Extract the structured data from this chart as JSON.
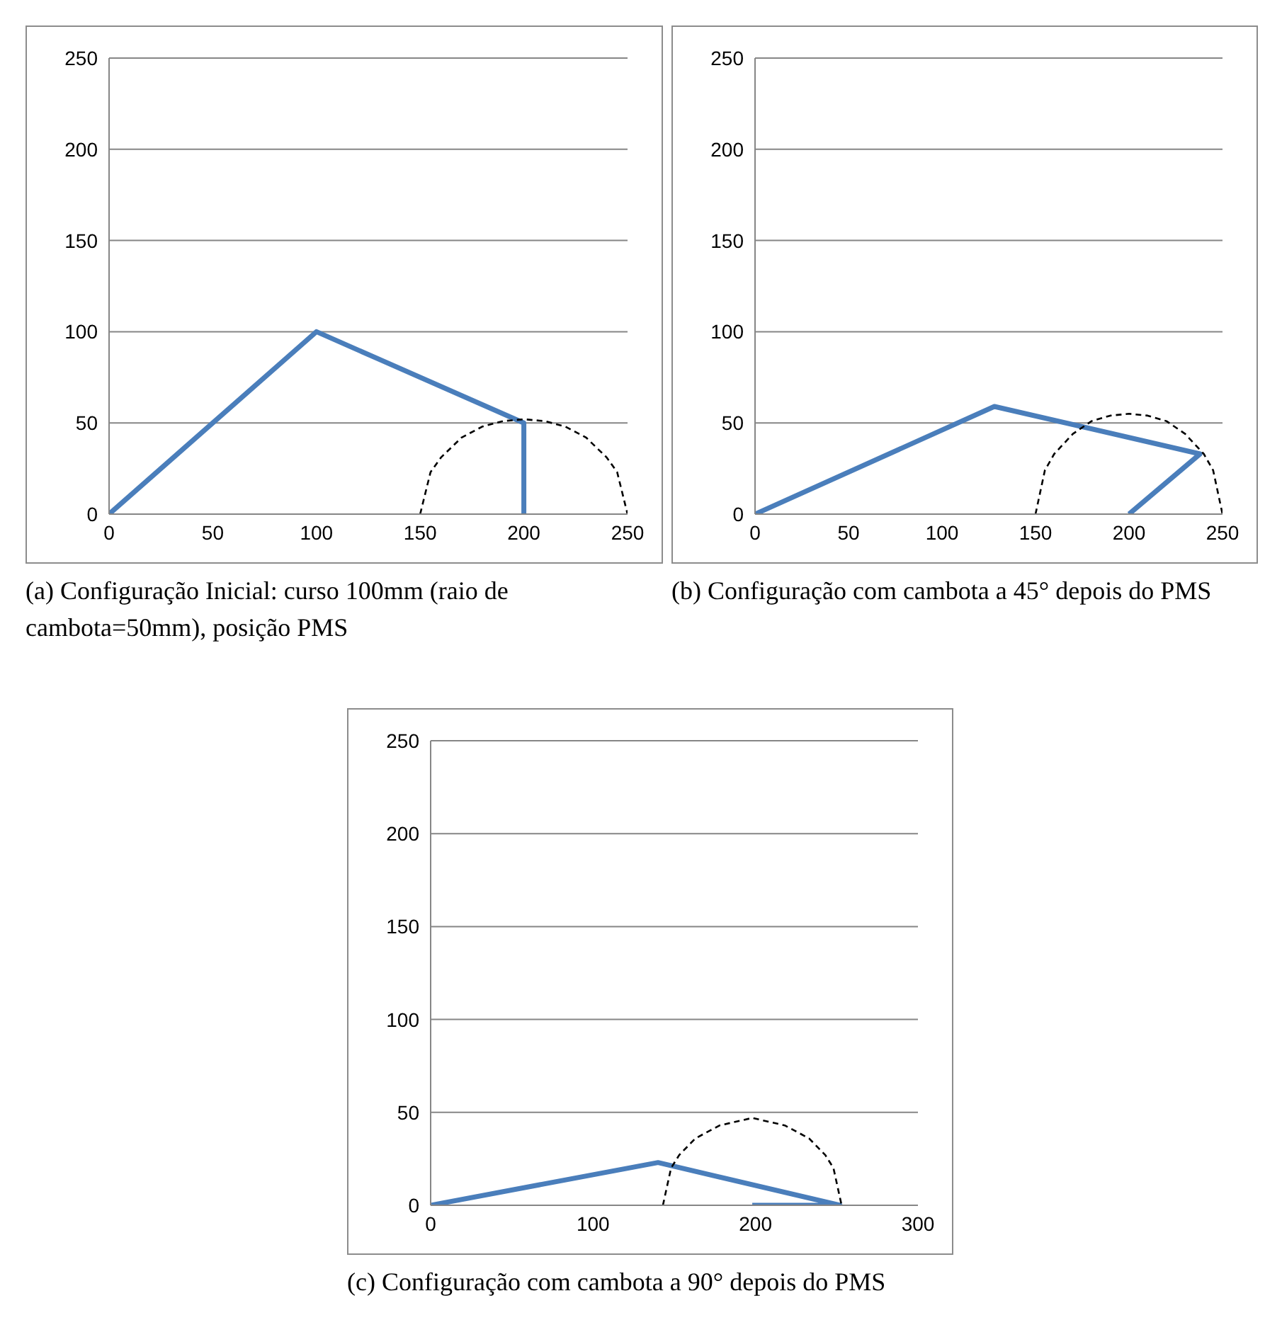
{
  "chart_data": [
    {
      "type": "line",
      "xlim": [
        0,
        250
      ],
      "xticks": [
        0,
        50,
        100,
        150,
        200,
        250
      ],
      "ylim": [
        0,
        250
      ],
      "yticks": [
        0,
        50,
        100,
        150,
        200,
        250
      ],
      "grid": "y",
      "annotations": [
        "(a) Configuração Inicial: curso 100mm (raio de cambota=50mm), posição PMS"
      ],
      "series": [
        {
          "color": "#4a7ebb",
          "line_style": "solid",
          "x": [
            0,
            100,
            200,
            200
          ],
          "values": [
            0,
            100,
            50,
            0
          ]
        },
        {
          "color": "#000000",
          "line_style": "dashed",
          "x": [
            150,
            155,
            160,
            170,
            180,
            190,
            200,
            210,
            220,
            230,
            240,
            245,
            250
          ],
          "values": [
            0,
            23,
            31,
            42,
            48,
            51,
            52,
            51,
            48,
            42,
            31,
            23,
            0
          ]
        }
      ]
    },
    {
      "type": "line",
      "xlim": [
        0,
        250
      ],
      "xticks": [
        0,
        50,
        100,
        150,
        200,
        250
      ],
      "ylim": [
        0,
        250
      ],
      "yticks": [
        0,
        50,
        100,
        150,
        200,
        250
      ],
      "grid": "y",
      "annotations": [
        "(b) Configuração com cambota a 45° depois do PMS"
      ],
      "series": [
        {
          "color": "#4a7ebb",
          "line_style": "solid",
          "x": [
            0,
            128,
            238,
            200
          ],
          "values": [
            0,
            59,
            33,
            0
          ]
        },
        {
          "color": "#000000",
          "line_style": "dashed",
          "x": [
            150,
            155,
            160,
            170,
            180,
            190,
            200,
            210,
            220,
            230,
            240,
            245,
            250
          ],
          "values": [
            0,
            24,
            33,
            44,
            51,
            54,
            55,
            54,
            51,
            44,
            33,
            24,
            0
          ]
        }
      ]
    },
    {
      "type": "line",
      "xlim": [
        0,
        300
      ],
      "xticks": [
        0,
        100,
        200,
        300
      ],
      "ylim": [
        0,
        250
      ],
      "yticks": [
        0,
        50,
        100,
        150,
        200,
        250
      ],
      "grid": "y",
      "annotations": [
        "(c) Configuração com cambota a 90° depois do PMS"
      ],
      "series": [
        {
          "color": "#4a7ebb",
          "line_style": "solid",
          "x": [
            0,
            140,
            252,
            198
          ],
          "values": [
            0,
            23,
            0,
            0
          ]
        },
        {
          "color": "#000000",
          "line_style": "dashed",
          "x": [
            143,
            148,
            153,
            163,
            178,
            198,
            218,
            233,
            243,
            248,
            253
          ],
          "values": [
            0,
            20,
            27,
            36,
            43,
            47,
            43,
            36,
            27,
            20,
            0
          ]
        }
      ]
    }
  ]
}
